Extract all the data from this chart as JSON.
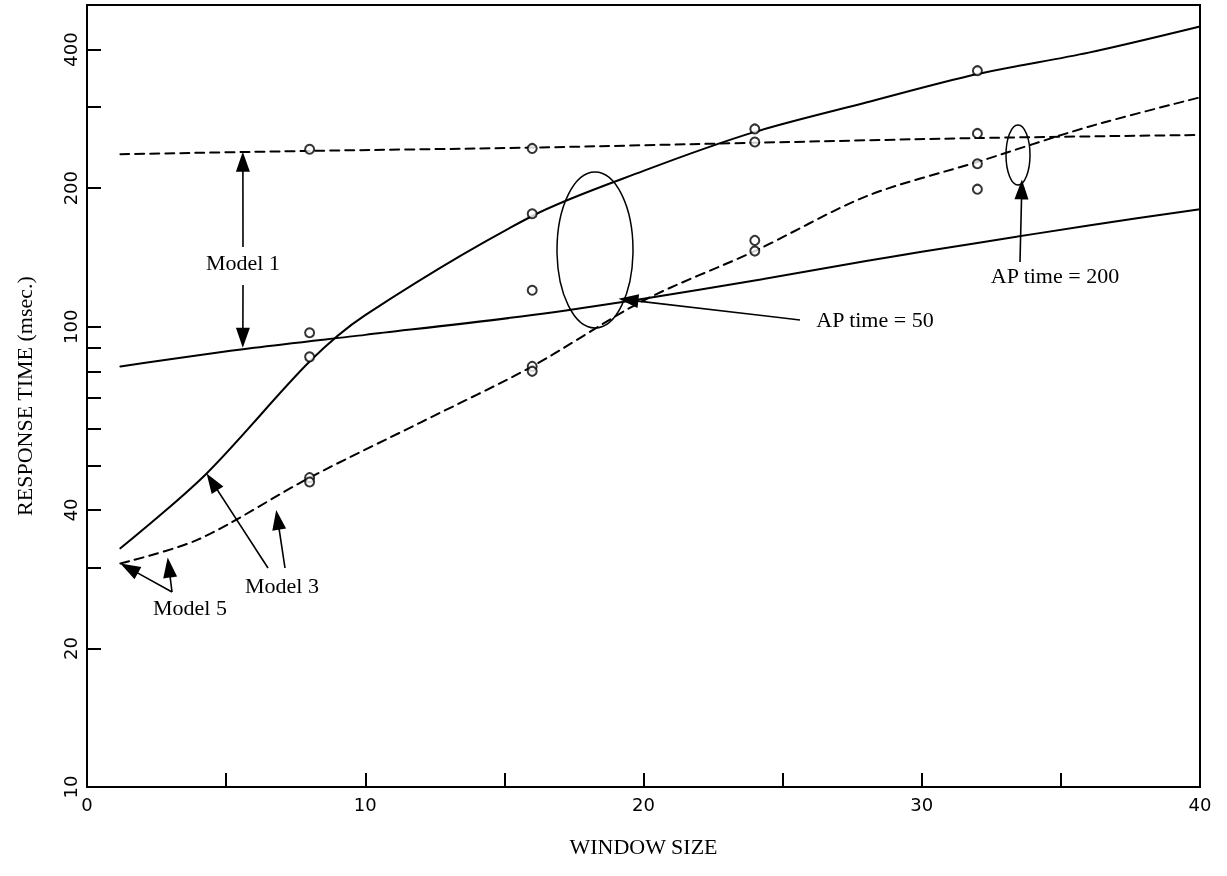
{
  "chart_data": {
    "type": "line",
    "xlabel": "WINDOW SIZE",
    "ylabel": "RESPONSE TIME (msec.)",
    "log": "y",
    "grid": false,
    "xlim": [
      0,
      40
    ],
    "ylim": [
      10,
      500
    ],
    "xticks": [
      0,
      {
        "value": 5,
        "label": null
      },
      10,
      {
        "value": 15,
        "label": null
      },
      20,
      {
        "value": 25,
        "label": null
      },
      30,
      {
        "value": 35,
        "label": null
      },
      40
    ],
    "yticks": [
      10,
      20,
      {
        "value": 30,
        "label": null
      },
      40,
      {
        "value": 50,
        "label": null
      },
      {
        "value": 60,
        "label": null
      },
      {
        "value": 70,
        "label": null
      },
      {
        "value": 80,
        "label": null
      },
      {
        "value": 90,
        "label": null
      },
      100,
      200,
      {
        "value": 300,
        "label": null
      },
      400
    ],
    "series": [
      {
        "color": "#000000",
        "line_style": "dashed",
        "marker": "none",
        "x": [
          1.2,
          8,
          16,
          24,
          32,
          40
        ],
        "values": [
          237,
          241,
          245,
          251,
          257,
          261
        ]
      },
      {
        "color": "#000000",
        "line_style": "solid",
        "marker": "none",
        "x": [
          1.2,
          6,
          10,
          16,
          20,
          24,
          28,
          32,
          36,
          40
        ],
        "values": [
          82,
          90,
          96,
          106,
          115,
          126,
          139,
          152,
          166,
          180
        ]
      },
      {
        "color": "#000000",
        "line_style": "solid",
        "marker": "none",
        "x": [
          1.2,
          4.3,
          8,
          10,
          16,
          20,
          24,
          28,
          32,
          36,
          40
        ],
        "values": [
          33,
          48,
          84,
          106,
          174,
          218,
          265,
          307,
          354,
          394,
          449
        ]
      },
      {
        "color": "#000000",
        "line_style": "dashed",
        "marker": "none",
        "x": [
          1.2,
          4,
          8,
          12,
          16,
          20,
          24,
          28,
          32,
          36,
          40
        ],
        "values": [
          30.6,
          34.5,
          47,
          62,
          82,
          114,
          146,
          192,
          228,
          272,
          315
        ]
      },
      {
        "type": "scatter",
        "color": "#000000",
        "marker": "circle",
        "x": [
          8,
          8,
          8,
          8,
          8,
          16,
          16,
          16,
          16,
          16,
          24,
          24,
          24,
          24,
          32,
          32,
          32,
          32
        ],
        "values": [
          243,
          97,
          86,
          47,
          46,
          244,
          176,
          120,
          82,
          80,
          269,
          252,
          154,
          146,
          360,
          263,
          226,
          199
        ]
      }
    ],
    "annotations": [
      "Model 1",
      "Model 3",
      {
        "text": "Model 5",
        "x": 1.2,
        "y": 30.6
      },
      "AP time = 50",
      "AP time = 200"
    ]
  }
}
